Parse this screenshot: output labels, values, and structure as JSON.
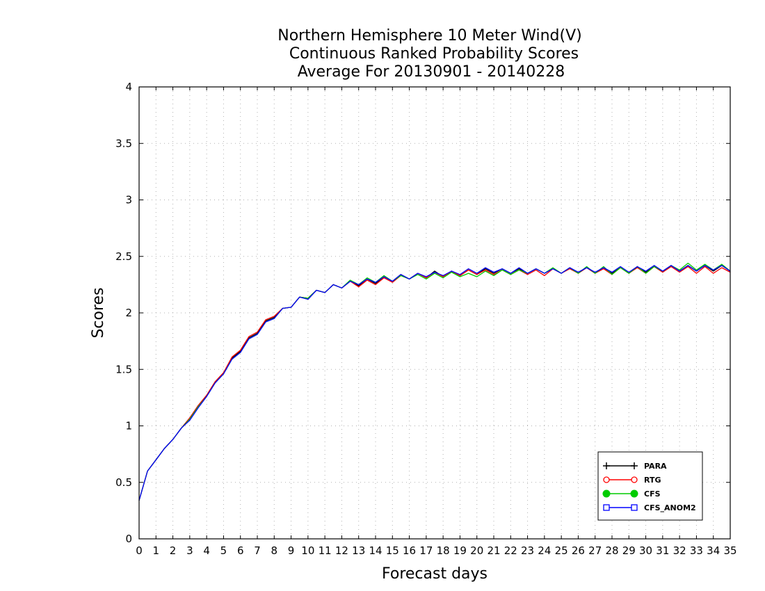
{
  "chart_data": {
    "type": "line",
    "title": [
      "Northern Hemisphere 10 Meter Wind(V)",
      "Continuous Ranked Probability Scores",
      "Average For 20130901 - 20140228"
    ],
    "xlabel": "Forecast days",
    "ylabel": "Scores",
    "xlim": [
      0,
      35
    ],
    "ylim": [
      0,
      4
    ],
    "x_ticks": [
      "0",
      "1",
      "2",
      "3",
      "4",
      "5",
      "6",
      "7",
      "8",
      "9",
      "10",
      "11",
      "12",
      "13",
      "14",
      "15",
      "16",
      "17",
      "18",
      "19",
      "20",
      "21",
      "22",
      "23",
      "24",
      "25",
      "26",
      "27",
      "28",
      "29",
      "30",
      "31",
      "32",
      "33",
      "34",
      "35"
    ],
    "y_ticks": [
      "0",
      "0.5",
      "1",
      "1.5",
      "2",
      "2.5",
      "3",
      "3.5",
      "4"
    ],
    "grid": true,
    "legend_position": "bottom-right",
    "x": [
      0,
      0.5,
      1,
      1.5,
      2,
      2.5,
      3,
      3.5,
      4,
      4.5,
      5,
      5.5,
      6,
      6.5,
      7,
      7.5,
      8,
      8.5,
      9,
      9.5,
      10,
      10.5,
      11,
      11.5,
      12,
      12.5,
      13,
      13.5,
      14,
      14.5,
      15,
      15.5,
      16,
      16.5,
      17,
      17.5,
      18,
      18.5,
      19,
      19.5,
      20,
      20.5,
      21,
      21.5,
      22,
      22.5,
      23,
      23.5,
      24,
      24.5,
      25,
      25.5,
      26,
      26.5,
      27,
      27.5,
      28,
      28.5,
      29,
      29.5,
      30,
      30.5,
      31,
      31.5,
      32,
      32.5,
      33,
      33.5,
      34,
      34.5,
      35
    ],
    "series": [
      {
        "name": "PARA",
        "color": "#000000",
        "marker": "plus",
        "values": [
          0.34,
          0.6,
          0.7,
          0.8,
          0.88,
          0.98,
          1.07,
          1.18,
          1.27,
          1.39,
          1.47,
          1.6,
          1.66,
          1.78,
          1.82,
          1.93,
          1.96,
          2.04,
          2.05,
          2.14,
          2.13,
          2.2,
          2.18,
          2.25,
          2.22,
          2.28,
          2.24,
          2.3,
          2.26,
          2.32,
          2.28,
          2.34,
          2.3,
          2.35,
          2.31,
          2.37,
          2.32,
          2.37,
          2.33,
          2.38,
          2.34,
          2.39,
          2.35,
          2.39,
          2.35,
          2.39,
          2.35,
          2.39,
          2.35,
          2.39,
          2.35,
          2.4,
          2.35,
          2.4,
          2.35,
          2.4,
          2.35,
          2.4,
          2.35,
          2.41,
          2.36,
          2.41,
          2.36,
          2.42,
          2.37,
          2.42,
          2.37,
          2.42,
          2.37,
          2.42,
          2.37
        ]
      },
      {
        "name": "RTG",
        "color": "#ff0000",
        "marker": "open-circle",
        "values": [
          0.34,
          0.6,
          0.7,
          0.8,
          0.88,
          0.98,
          1.07,
          1.18,
          1.27,
          1.39,
          1.47,
          1.61,
          1.67,
          1.79,
          1.83,
          1.94,
          1.97,
          2.04,
          2.05,
          2.14,
          2.13,
          2.2,
          2.18,
          2.25,
          2.22,
          2.28,
          2.23,
          2.29,
          2.25,
          2.31,
          2.27,
          2.33,
          2.3,
          2.35,
          2.31,
          2.36,
          2.32,
          2.37,
          2.33,
          2.38,
          2.34,
          2.38,
          2.34,
          2.38,
          2.34,
          2.38,
          2.34,
          2.38,
          2.33,
          2.39,
          2.35,
          2.39,
          2.35,
          2.4,
          2.35,
          2.39,
          2.34,
          2.4,
          2.35,
          2.4,
          2.35,
          2.41,
          2.36,
          2.41,
          2.36,
          2.41,
          2.35,
          2.41,
          2.35,
          2.4,
          2.36
        ]
      },
      {
        "name": "CFS",
        "color": "#00cc00",
        "marker": "filled-circle",
        "values": [
          0.34,
          0.6,
          0.7,
          0.8,
          0.88,
          0.98,
          1.06,
          1.17,
          1.26,
          1.38,
          1.46,
          1.59,
          1.65,
          1.77,
          1.81,
          1.92,
          1.95,
          2.04,
          2.05,
          2.14,
          2.13,
          2.2,
          2.18,
          2.25,
          2.22,
          2.29,
          2.25,
          2.31,
          2.27,
          2.33,
          2.28,
          2.33,
          2.3,
          2.34,
          2.3,
          2.35,
          2.31,
          2.36,
          2.32,
          2.35,
          2.32,
          2.37,
          2.33,
          2.38,
          2.34,
          2.38,
          2.35,
          2.39,
          2.35,
          2.4,
          2.35,
          2.4,
          2.35,
          2.41,
          2.35,
          2.41,
          2.34,
          2.4,
          2.35,
          2.41,
          2.35,
          2.41,
          2.37,
          2.42,
          2.38,
          2.44,
          2.38,
          2.43,
          2.38,
          2.43,
          2.37
        ]
      },
      {
        "name": "CFS_ANOM2",
        "color": "#0000ff",
        "marker": "open-square",
        "values": [
          0.34,
          0.6,
          0.7,
          0.8,
          0.88,
          0.98,
          1.05,
          1.16,
          1.26,
          1.38,
          1.46,
          1.59,
          1.65,
          1.77,
          1.81,
          1.92,
          1.95,
          2.04,
          2.05,
          2.14,
          2.12,
          2.2,
          2.18,
          2.25,
          2.22,
          2.28,
          2.25,
          2.3,
          2.27,
          2.32,
          2.28,
          2.34,
          2.3,
          2.35,
          2.32,
          2.36,
          2.33,
          2.37,
          2.34,
          2.39,
          2.35,
          2.4,
          2.36,
          2.39,
          2.35,
          2.4,
          2.35,
          2.39,
          2.35,
          2.39,
          2.35,
          2.4,
          2.36,
          2.4,
          2.36,
          2.4,
          2.36,
          2.41,
          2.36,
          2.41,
          2.37,
          2.42,
          2.37,
          2.42,
          2.37,
          2.42,
          2.37,
          2.42,
          2.38,
          2.42,
          2.37
        ]
      }
    ]
  }
}
